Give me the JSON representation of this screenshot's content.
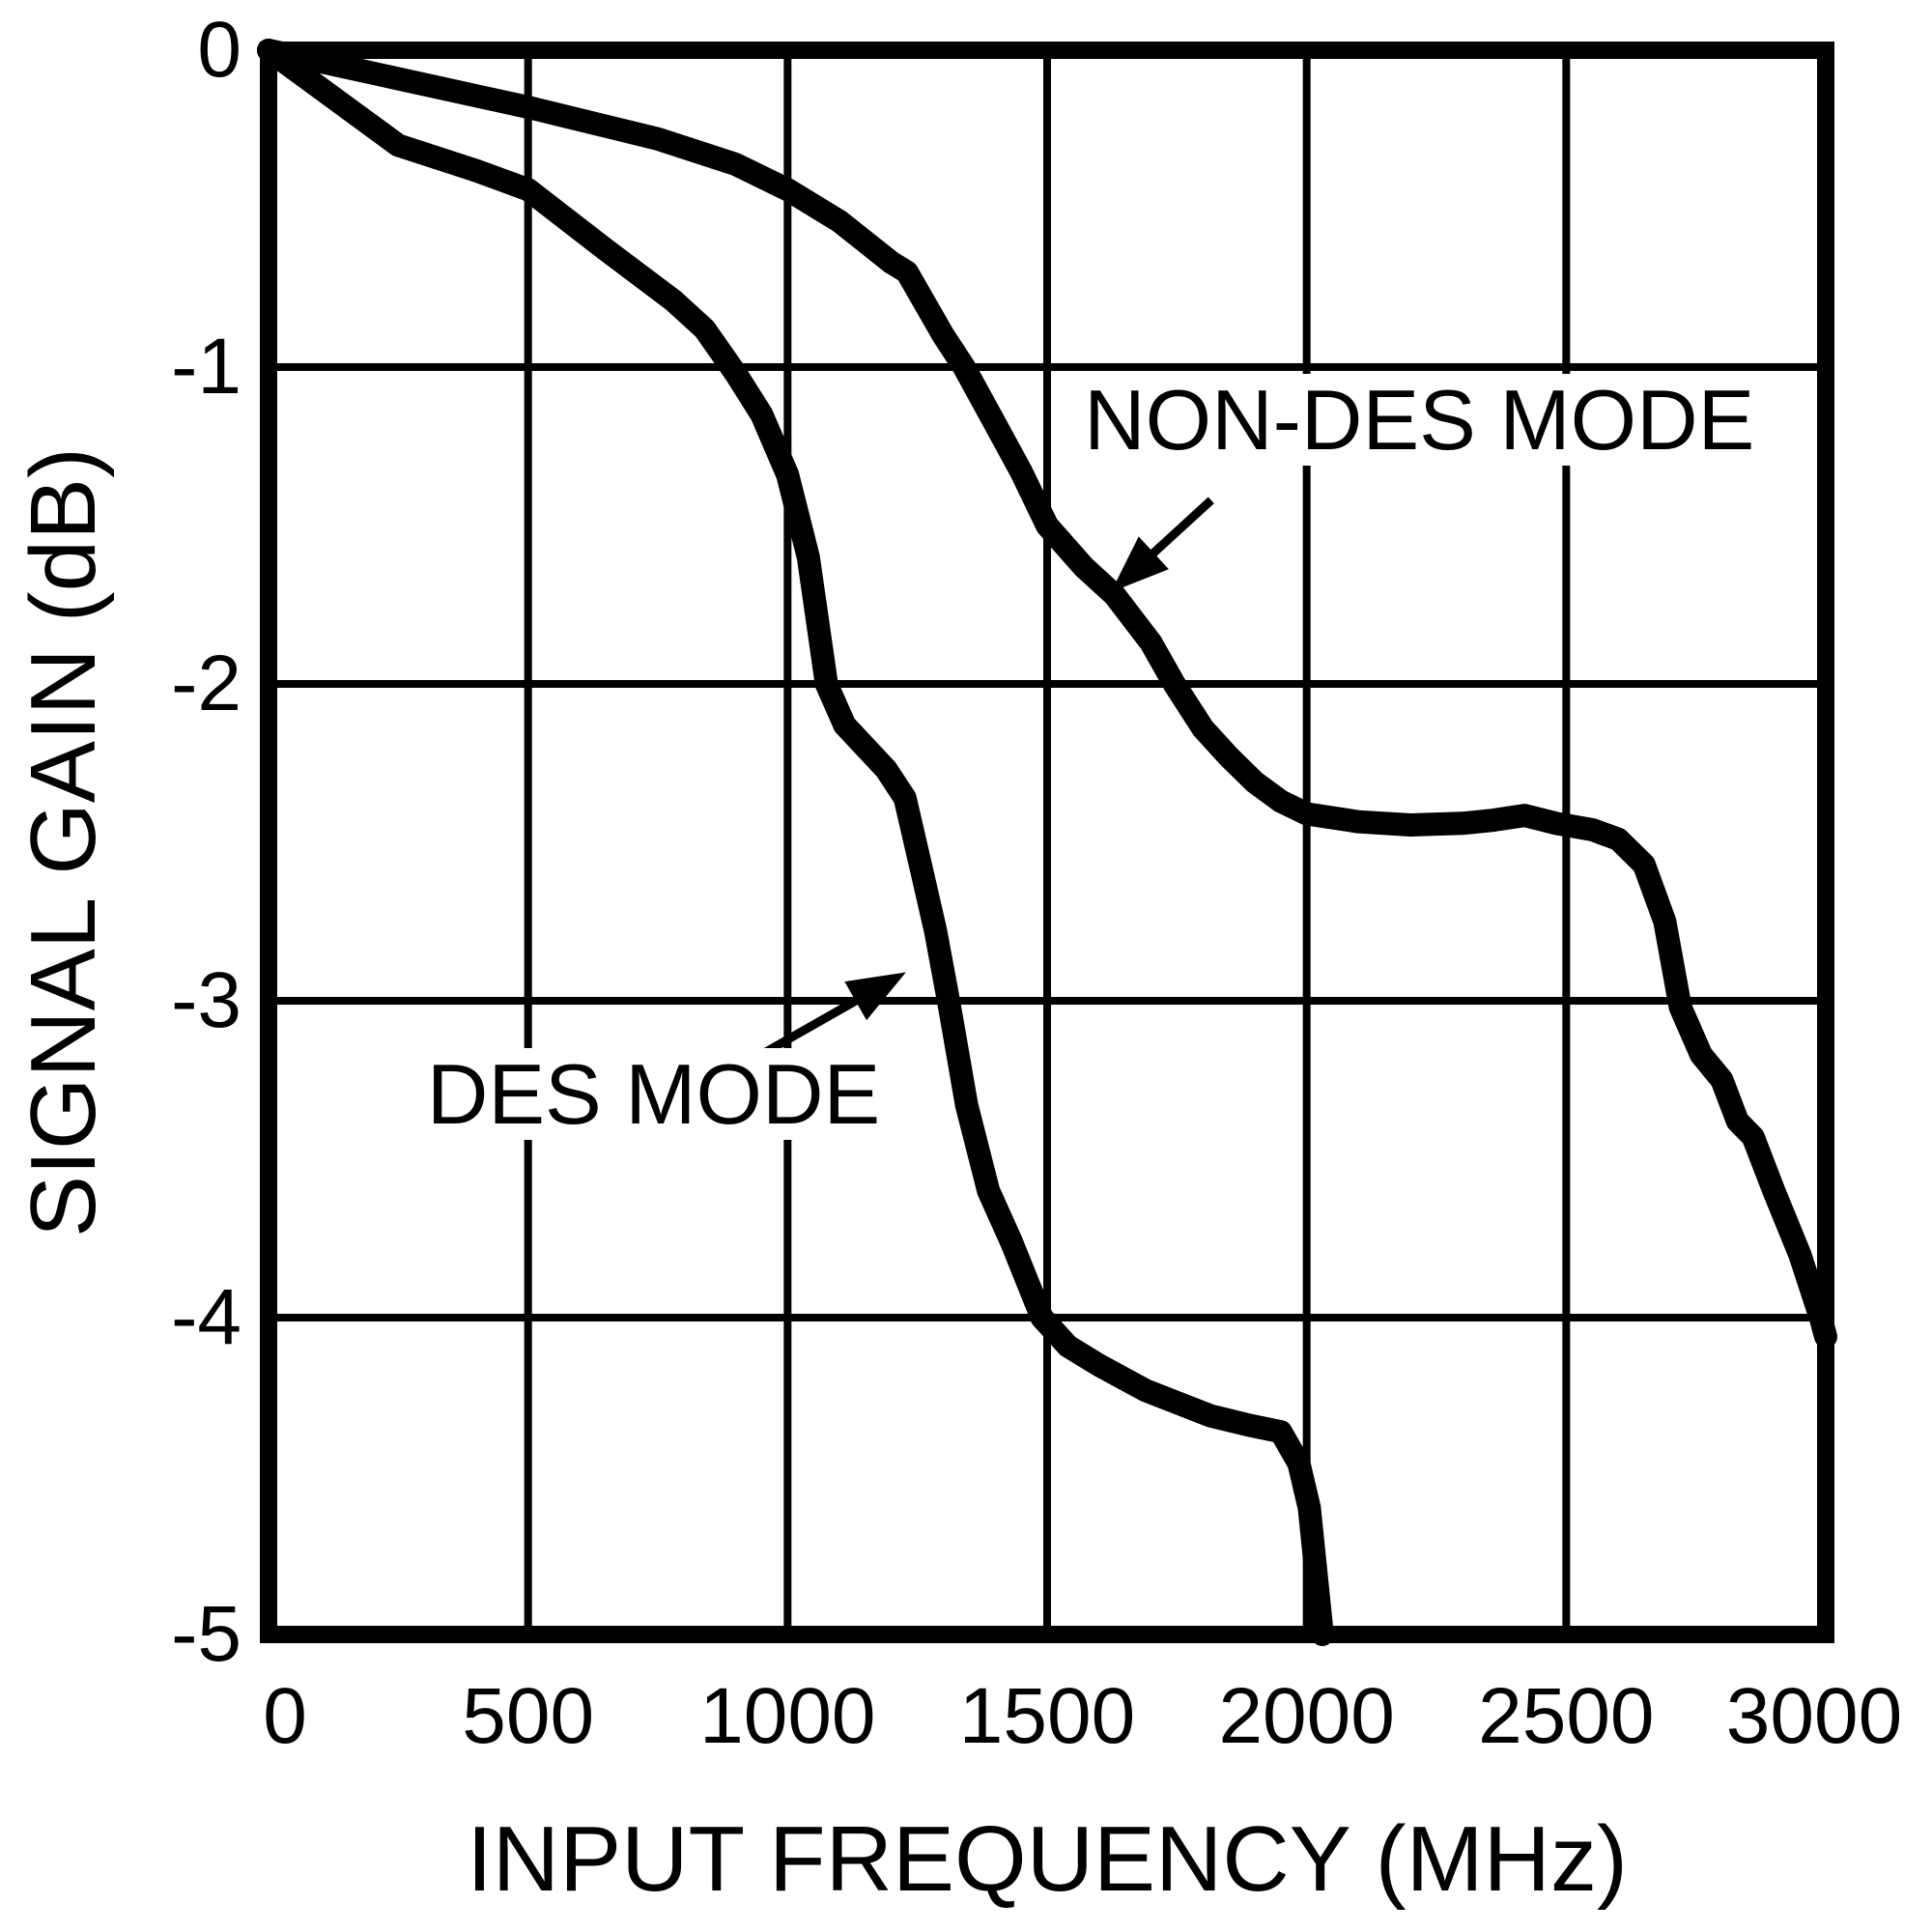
{
  "figure": {
    "background_color": "#ffffff",
    "line_color": "#000000"
  },
  "chart_data": {
    "type": "line",
    "title": "",
    "xlabel": "INPUT FREQUENCY (MHz)",
    "ylabel": "SIGNAL GAIN (dB)",
    "xlim": [
      0,
      3000
    ],
    "ylim": [
      -5,
      0
    ],
    "x_ticks": [
      0,
      500,
      1000,
      1500,
      2000,
      2500,
      3000
    ],
    "x_tick_labels": [
      "0",
      "500",
      "1000",
      "1500",
      "2000",
      "2500",
      "3000"
    ],
    "y_ticks": [
      0,
      -1,
      -2,
      -3,
      -4,
      -5
    ],
    "y_tick_labels": [
      "0",
      "-1",
      "-2",
      "-3",
      "-4",
      "-5"
    ],
    "grid": true,
    "legend_position": "none",
    "series": [
      {
        "name": "NON-DES MODE",
        "x": [
          0,
          250,
          500,
          750,
          900,
          1000,
          1100,
          1200,
          1230,
          1300,
          1340,
          1400,
          1450,
          1500,
          1570,
          1630,
          1700,
          1745,
          1800,
          1850,
          1900,
          1950,
          2000,
          2100,
          2200,
          2300,
          2360,
          2420,
          2480,
          2550,
          2600,
          2650,
          2690,
          2720,
          2760,
          2800,
          2830,
          2860,
          2900,
          2950,
          2990,
          3000
        ],
        "y": [
          0,
          -0.09,
          -0.18,
          -0.28,
          -0.36,
          -0.44,
          -0.54,
          -0.67,
          -0.7,
          -0.9,
          -1.0,
          -1.18,
          -1.33,
          -1.5,
          -1.63,
          -1.72,
          -1.87,
          -2.0,
          -2.14,
          -2.23,
          -2.31,
          -2.37,
          -2.41,
          -2.435,
          -2.445,
          -2.44,
          -2.43,
          -2.415,
          -2.44,
          -2.46,
          -2.49,
          -2.57,
          -2.75,
          -3.02,
          -3.17,
          -3.25,
          -3.38,
          -3.43,
          -3.6,
          -3.8,
          -4.0,
          -4.06
        ]
      },
      {
        "name": "DES MODE",
        "x": [
          0,
          250,
          400,
          500,
          650,
          780,
          840,
          900,
          950,
          1000,
          1040,
          1075,
          1110,
          1150,
          1190,
          1226,
          1260,
          1285,
          1310,
          1345,
          1387,
          1431,
          1490,
          1540,
          1600,
          1690,
          1815,
          1890,
          1950,
          1985,
          2005,
          2030
        ],
        "y": [
          0,
          -0.3,
          -0.38,
          -0.44,
          -0.63,
          -0.79,
          -0.88,
          -1.02,
          -1.15,
          -1.34,
          -1.6,
          -2.0,
          -2.13,
          -2.2,
          -2.27,
          -2.36,
          -2.6,
          -2.78,
          -3.0,
          -3.33,
          -3.6,
          -3.76,
          -4.0,
          -4.09,
          -4.15,
          -4.23,
          -4.31,
          -4.34,
          -4.36,
          -4.46,
          -4.6,
          -5.0
        ]
      }
    ],
    "annotations": [
      {
        "text": "NON-DES MODE",
        "label_x_mhz": 1556,
        "label_y_db": -1.02,
        "arrow": {
          "tail": [
            1816,
            -1.42
          ],
          "tip": [
            1623,
            -1.71
          ]
        }
      },
      {
        "text": "DES MODE",
        "label_x_mhz": 290,
        "label_y_db": -3.15,
        "arrow": {
          "tail": [
            949,
            -3.17
          ],
          "tip": [
            1228,
            -2.91
          ]
        }
      }
    ],
    "style": {
      "curve_stroke_width": 24,
      "frame_stroke_width": 18,
      "grid_stroke_width": 8,
      "arrow_stroke_width": 9,
      "stroke_color": "#000000",
      "background": "#ffffff"
    }
  }
}
